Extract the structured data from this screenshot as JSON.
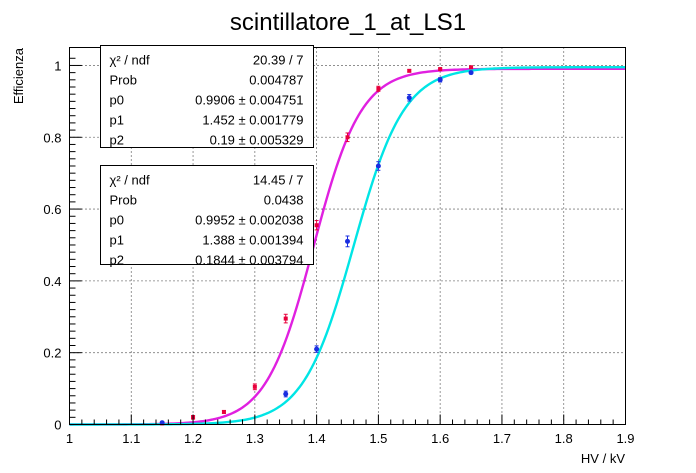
{
  "chart_data": {
    "type": "scatter",
    "title": "scintillatore_1_at_LS1",
    "xlabel": "HV / kV",
    "ylabel": "Efficienza",
    "xlim": [
      1.0,
      1.9
    ],
    "ylim": [
      0,
      1.05
    ],
    "grid": true,
    "x_ticks": [
      "1",
      "1.1",
      "1.2",
      "1.3",
      "1.4",
      "1.5",
      "1.6",
      "1.7",
      "1.8",
      "1.9"
    ],
    "y_ticks": [
      "0",
      "0.2",
      "0.4",
      "0.6",
      "0.8",
      "1"
    ],
    "series": [
      {
        "name": "magenta",
        "color": "#e020e0",
        "marker_color": "#e8003c",
        "fit": {
          "function": "sigmoid",
          "p0": 0.9906,
          "p1": 1.452,
          "p2": 0.19
        },
        "points": [
          {
            "x": 1.15,
            "y": 0.003,
            "err": 0.002
          },
          {
            "x": 1.2,
            "y": 0.02,
            "err": 0.005
          },
          {
            "x": 1.25,
            "y": 0.035,
            "err": 0.004
          },
          {
            "x": 1.3,
            "y": 0.105,
            "err": 0.008
          },
          {
            "x": 1.35,
            "y": 0.295,
            "err": 0.012
          },
          {
            "x": 1.4,
            "y": 0.555,
            "err": 0.013
          },
          {
            "x": 1.45,
            "y": 0.8,
            "err": 0.012
          },
          {
            "x": 1.5,
            "y": 0.935,
            "err": 0.007
          },
          {
            "x": 1.55,
            "y": 0.985,
            "err": 0.003
          },
          {
            "x": 1.6,
            "y": 0.99,
            "err": 0.002
          },
          {
            "x": 1.65,
            "y": 0.995,
            "err": 0.002
          }
        ]
      },
      {
        "name": "cyan",
        "color": "#00e5e5",
        "marker_color": "#1a2ee0",
        "fit": {
          "function": "sigmoid",
          "p0": 0.9952,
          "p1": 1.388,
          "p2": 0.1844
        },
        "points": [
          {
            "x": 1.15,
            "y": 0.005,
            "err": 0.002
          },
          {
            "x": 1.35,
            "y": 0.085,
            "err": 0.008
          },
          {
            "x": 1.4,
            "y": 0.21,
            "err": 0.009
          },
          {
            "x": 1.45,
            "y": 0.51,
            "err": 0.015
          },
          {
            "x": 1.5,
            "y": 0.72,
            "err": 0.012
          },
          {
            "x": 1.55,
            "y": 0.91,
            "err": 0.009
          },
          {
            "x": 1.6,
            "y": 0.96,
            "err": 0.006
          },
          {
            "x": 1.65,
            "y": 0.98,
            "err": 0.004
          }
        ]
      }
    ],
    "stats_boxes": [
      {
        "series": "magenta",
        "rows": [
          {
            "label": "χ² / ndf",
            "value": "20.39 / 7"
          },
          {
            "label": "Prob",
            "value": "0.004787"
          },
          {
            "label": "p0",
            "value": "0.9906 ±  0.004751"
          },
          {
            "label": "p1",
            "value": "1.452 ±  0.001779"
          },
          {
            "label": "p2",
            "value": "0.19 ±  0.005329"
          }
        ]
      },
      {
        "series": "cyan",
        "rows": [
          {
            "label": "χ² / ndf",
            "value": "14.45 / 7"
          },
          {
            "label": "Prob",
            "value": "0.0438"
          },
          {
            "label": "p0",
            "value": "0.9952 ±  0.002038"
          },
          {
            "label": "p1",
            "value": "1.388 ±  0.001394"
          },
          {
            "label": "p2",
            "value": "0.1844 ±  0.003794"
          }
        ]
      }
    ]
  }
}
